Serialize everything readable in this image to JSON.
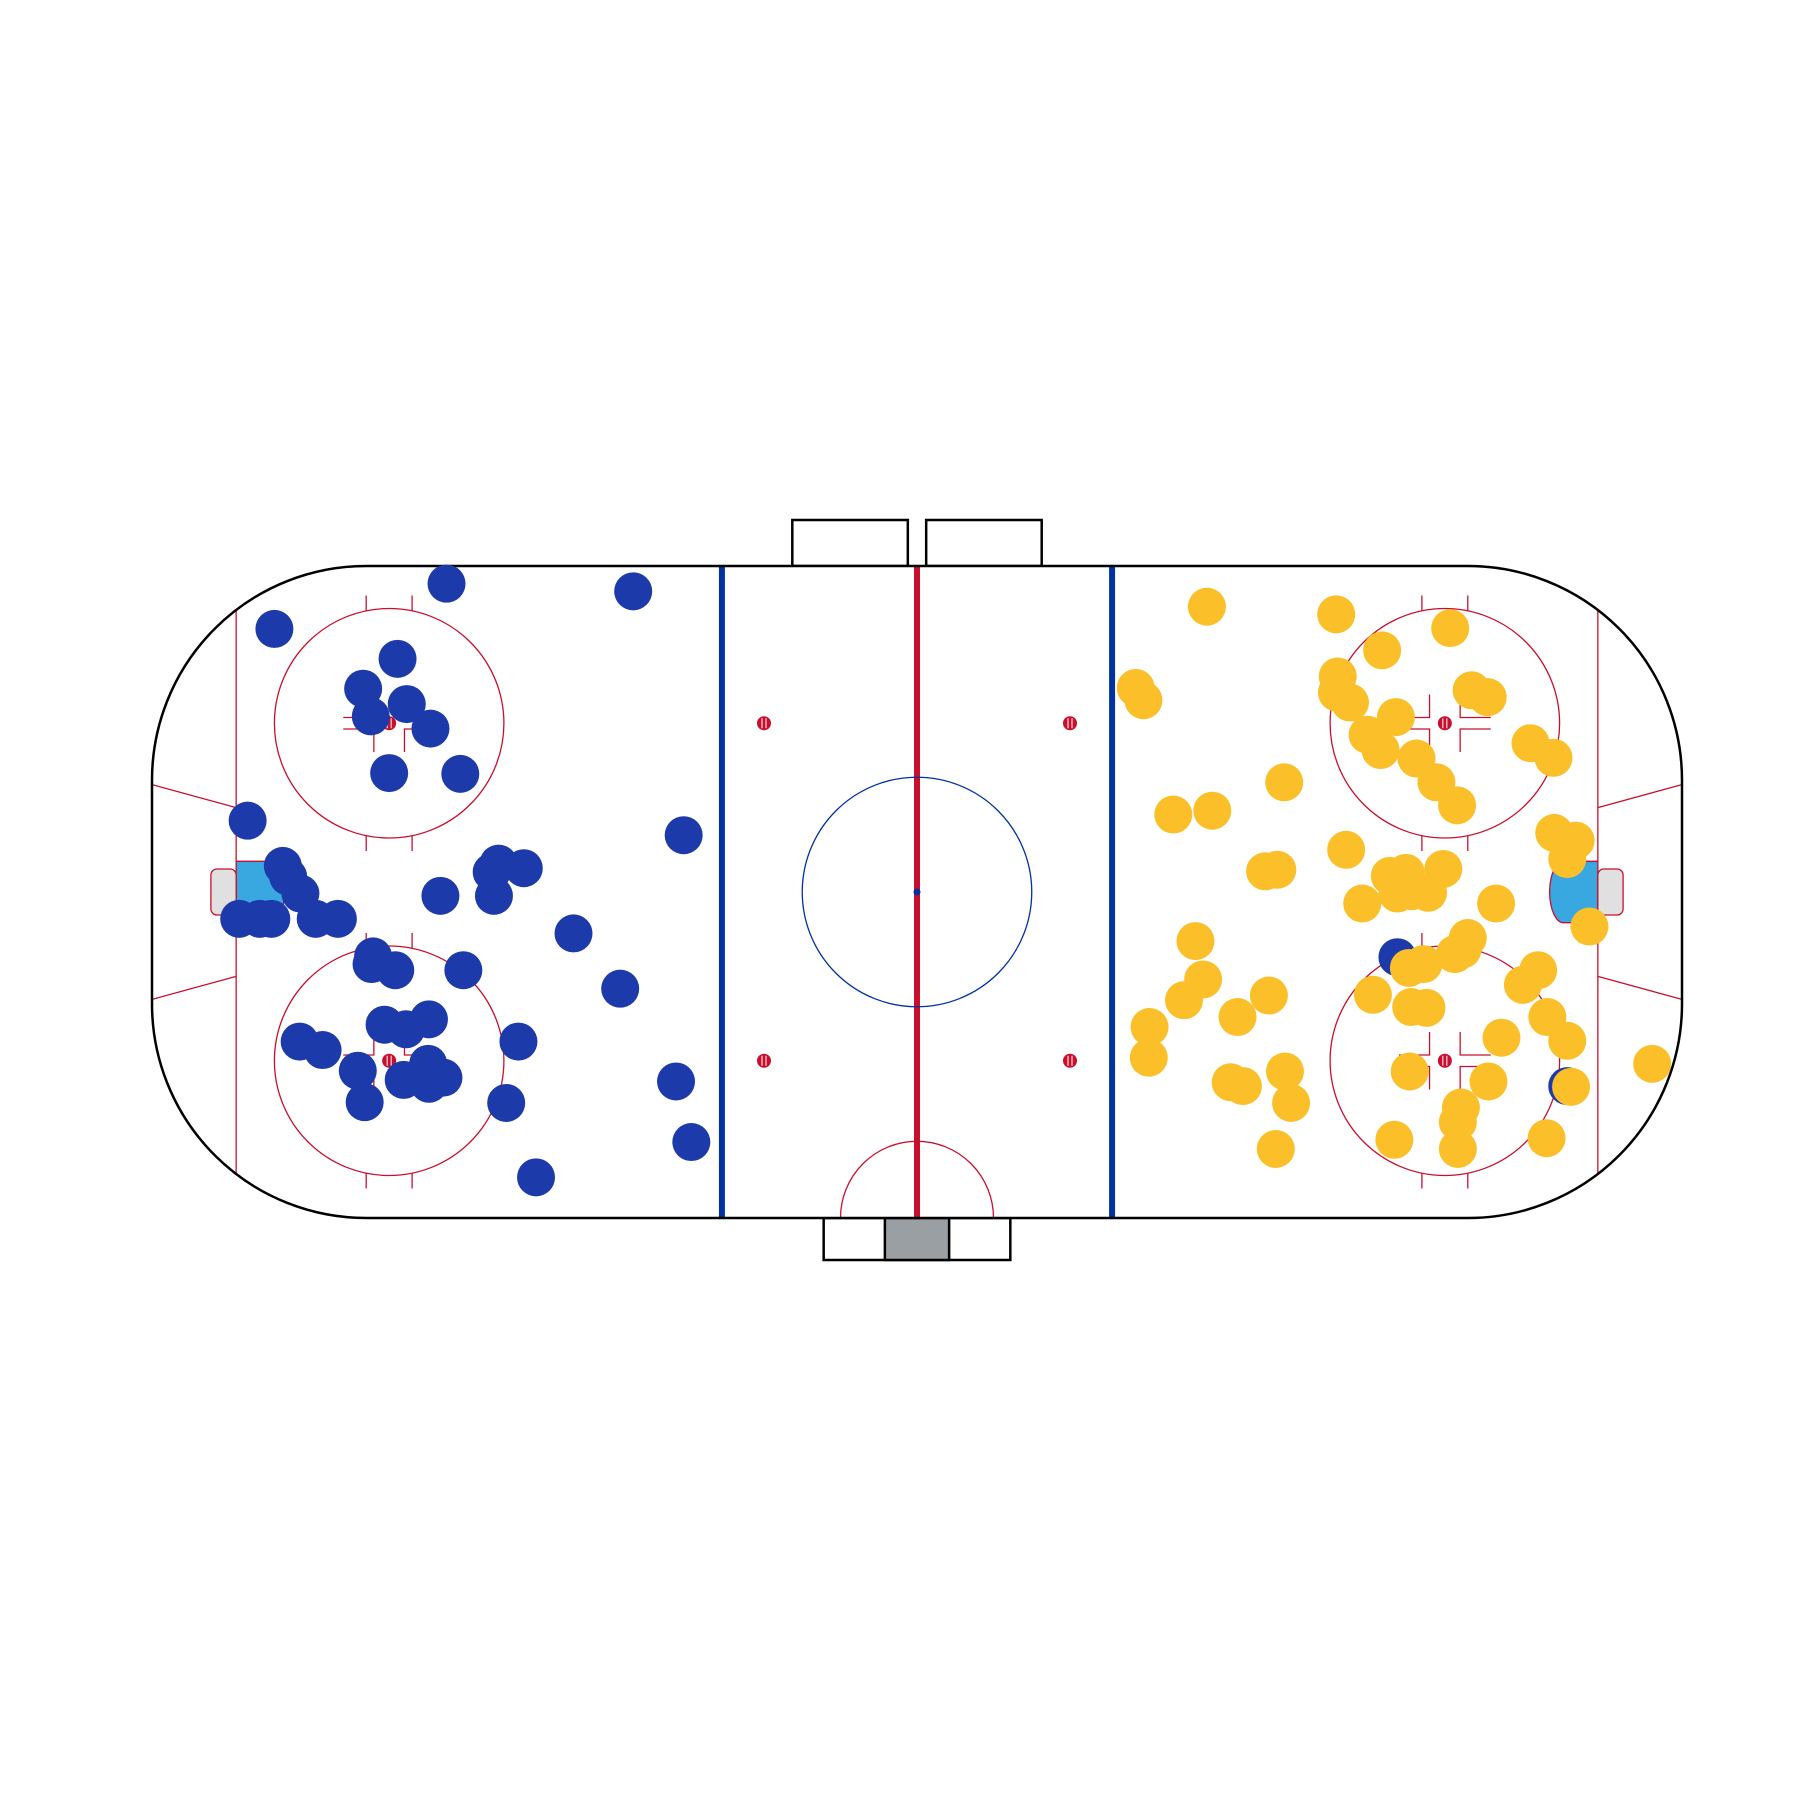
{
  "chart_data": {
    "type": "scatter",
    "title": "",
    "xlabel": "",
    "ylabel": "",
    "xlim": [
      -100,
      100
    ],
    "ylim": [
      -42.5,
      42.5
    ],
    "grid": false,
    "legend": "none",
    "background": "rink",
    "series": [
      {
        "color": "#1c3aa9",
        "points": [
          [
            -61.5,
            40.2
          ],
          [
            -37.1,
            39.2
          ],
          [
            -84.0,
            34.3
          ],
          [
            -67.9,
            30.4
          ],
          [
            -72.4,
            26.5
          ],
          [
            -71.4,
            22.9
          ],
          [
            -66.7,
            24.5
          ],
          [
            -63.6,
            21.3
          ],
          [
            -69.0,
            15.5
          ],
          [
            -59.7,
            15.4
          ],
          [
            -87.5,
            9.3
          ],
          [
            -30.5,
            7.4
          ],
          [
            -82.9,
            3.4
          ],
          [
            -82.2,
            2.0
          ],
          [
            -54.7,
            3.7
          ],
          [
            -51.4,
            3.1
          ],
          [
            -55.6,
            2.6
          ],
          [
            -80.6,
            -0.2
          ],
          [
            -62.3,
            -0.5
          ],
          [
            -55.3,
            -0.5
          ],
          [
            -88.6,
            -3.5
          ],
          [
            -84.4,
            -3.5
          ],
          [
            -85.9,
            -3.5
          ],
          [
            -78.6,
            -3.5
          ],
          [
            -75.7,
            -3.5
          ],
          [
            -44.9,
            -5.4
          ],
          [
            -71.1,
            -8.4
          ],
          [
            -71.3,
            -9.4
          ],
          [
            -68.2,
            -10.2
          ],
          [
            -59.3,
            -10.2
          ],
          [
            -38.8,
            -12.6
          ],
          [
            -69.6,
            -17.3
          ],
          [
            -66.8,
            -17.9
          ],
          [
            -63.8,
            -16.6
          ],
          [
            -80.7,
            -19.5
          ],
          [
            -77.7,
            -20.6
          ],
          [
            -52.1,
            -19.5
          ],
          [
            -63.9,
            -22.4
          ],
          [
            -73.1,
            -23.3
          ],
          [
            -67.1,
            -24.5
          ],
          [
            -63.8,
            -25.0
          ],
          [
            -61.9,
            -24.2
          ],
          [
            -72.2,
            -27.4
          ],
          [
            -53.7,
            -27.5
          ],
          [
            -31.5,
            -24.7
          ],
          [
            -29.5,
            -32.6
          ],
          [
            -49.8,
            -37.2
          ],
          [
            62.8,
            -8.5
          ],
          [
            85.0,
            -25.3
          ]
        ]
      },
      {
        "color": "#fbbf2a",
        "points": [
          [
            37.9,
            37.2
          ],
          [
            54.8,
            36.2
          ],
          [
            69.7,
            34.4
          ],
          [
            60.8,
            31.5
          ],
          [
            55.0,
            28.1
          ],
          [
            28.6,
            26.6
          ],
          [
            29.6,
            25.0
          ],
          [
            54.9,
            26.0
          ],
          [
            56.6,
            24.7
          ],
          [
            72.5,
            26.3
          ],
          [
            74.6,
            25.4
          ],
          [
            62.6,
            22.8
          ],
          [
            58.9,
            20.5
          ],
          [
            60.6,
            18.5
          ],
          [
            65.3,
            17.4
          ],
          [
            80.2,
            19.4
          ],
          [
            83.2,
            17.5
          ],
          [
            48.0,
            14.3
          ],
          [
            67.9,
            14.3
          ],
          [
            70.6,
            11.3
          ],
          [
            33.5,
            10.1
          ],
          [
            38.6,
            10.6
          ],
          [
            83.3,
            7.7
          ],
          [
            86.1,
            6.7
          ],
          [
            56.1,
            5.5
          ],
          [
            85.0,
            4.3
          ],
          [
            45.5,
            2.7
          ],
          [
            47.1,
            2.9
          ],
          [
            61.8,
            2.1
          ],
          [
            63.9,
            2.5
          ],
          [
            68.8,
            3.0
          ],
          [
            64.7,
            0.1
          ],
          [
            62.8,
            -0.2
          ],
          [
            66.8,
            -0.1
          ],
          [
            58.2,
            -1.5
          ],
          [
            75.7,
            -1.5
          ],
          [
            87.9,
            -4.5
          ],
          [
            36.4,
            -6.4
          ],
          [
            71.3,
            -7.5
          ],
          [
            72.0,
            -6.0
          ],
          [
            70.3,
            -8.1
          ],
          [
            64.3,
            -9.9
          ],
          [
            66.2,
            -9.4
          ],
          [
            37.4,
            -11.4
          ],
          [
            81.2,
            -10.2
          ],
          [
            79.2,
            -12.1
          ],
          [
            59.6,
            -13.4
          ],
          [
            34.9,
            -14.1
          ],
          [
            64.6,
            -15.0
          ],
          [
            66.6,
            -15.1
          ],
          [
            46.0,
            -13.5
          ],
          [
            41.9,
            -16.3
          ],
          [
            30.4,
            -17.6
          ],
          [
            82.4,
            -16.3
          ],
          [
            76.4,
            -19.0
          ],
          [
            85.0,
            -19.4
          ],
          [
            30.3,
            -21.6
          ],
          [
            64.4,
            -23.4
          ],
          [
            48.1,
            -23.4
          ],
          [
            41.0,
            -24.8
          ],
          [
            42.6,
            -25.3
          ],
          [
            74.7,
            -24.7
          ],
          [
            48.9,
            -27.5
          ],
          [
            71.1,
            -28.1
          ],
          [
            96.1,
            -22.4
          ],
          [
            70.7,
            -30.0
          ],
          [
            82.3,
            -32.1
          ],
          [
            62.4,
            -32.3
          ],
          [
            46.9,
            -33.5
          ],
          [
            70.7,
            -33.5
          ],
          [
            85.5,
            -25.4
          ]
        ]
      }
    ]
  },
  "colors": {
    "home_team": "#1c3aa9",
    "away_team": "#fbbf2a",
    "center_line": "#c8102e",
    "blue_line": "#0033a0",
    "crease": "#39a8e0",
    "net": "#e0e0e0",
    "boards": "#000000",
    "scorekeeper_box": "#999fa3"
  }
}
